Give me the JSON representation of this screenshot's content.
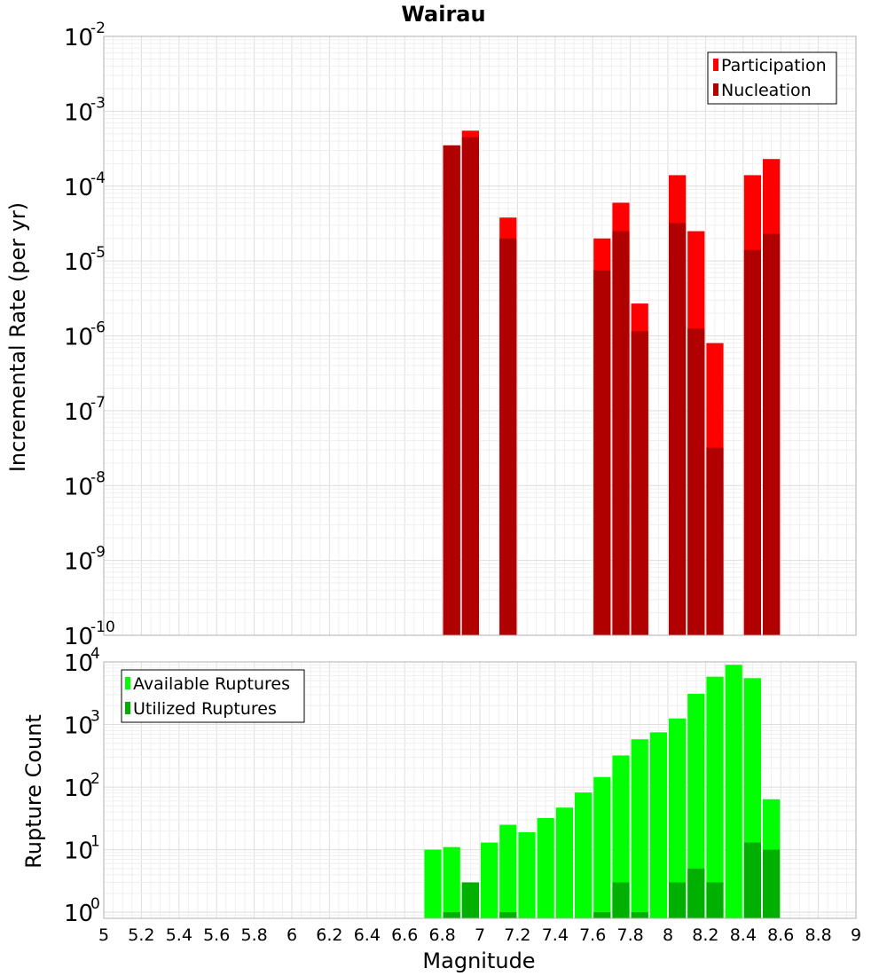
{
  "chart_data": [
    {
      "type": "bar",
      "title": "Wairau",
      "ylabel": "Incremental Rate (per yr)",
      "xlabel": "",
      "yscale": "log",
      "xlim": [
        5,
        9
      ],
      "ylim": [
        1e-10,
        0.01
      ],
      "y_tick_exponents": [
        -10,
        -9,
        -8,
        -7,
        -6,
        -5,
        -4,
        -3,
        -2
      ],
      "y_tick_base": "10",
      "bar_width": 0.1,
      "grid": true,
      "legend_position": "top-right",
      "series": [
        {
          "name": "Participation",
          "color": "#ff0000",
          "x": [
            6.85,
            6.95,
            7.15,
            7.65,
            7.75,
            7.85,
            8.05,
            8.15,
            8.25,
            8.45,
            8.55
          ],
          "values": [
            0.00035,
            0.00055,
            3.8e-05,
            2e-05,
            6e-05,
            2.7e-06,
            0.00014,
            2.5e-05,
            8e-07,
            0.00014,
            0.00023
          ]
        },
        {
          "name": "Nucleation",
          "color": "#b00000",
          "x": [
            6.85,
            6.95,
            7.15,
            7.65,
            7.75,
            7.85,
            8.05,
            8.15,
            8.25,
            8.45,
            8.55
          ],
          "values": [
            0.00035,
            0.00045,
            2e-05,
            7.5e-06,
            2.5e-05,
            1.15e-06,
            3.2e-05,
            1.25e-06,
            3.2e-08,
            1.4e-05,
            2.3e-05
          ]
        }
      ]
    },
    {
      "type": "bar",
      "title": "",
      "ylabel": "Rupture Count",
      "xlabel": "Magnitude",
      "yscale": "log",
      "xlim": [
        5,
        9
      ],
      "ylim": [
        0.8,
        10000
      ],
      "y_tick_exponents": [
        0,
        1,
        2,
        3,
        4
      ],
      "y_tick_base": "10",
      "x_ticks": [
        "5",
        "5.2",
        "5.4",
        "5.6",
        "5.8",
        "6",
        "6.2",
        "6.4",
        "6.6",
        "6.8",
        "7",
        "7.2",
        "7.4",
        "7.6",
        "7.8",
        "8",
        "8.2",
        "8.4",
        "8.6",
        "8.8",
        "9"
      ],
      "bar_width": 0.1,
      "grid": true,
      "legend_position": "top-left",
      "series": [
        {
          "name": "Available Ruptures",
          "color": "#00ff00",
          "x": [
            6.75,
            6.85,
            6.95,
            7.05,
            7.15,
            7.25,
            7.35,
            7.45,
            7.55,
            7.65,
            7.75,
            7.85,
            7.95,
            8.05,
            8.15,
            8.25,
            8.35,
            8.45,
            8.55
          ],
          "values": [
            10,
            11,
            3,
            13,
            25,
            19,
            32,
            47,
            82,
            145,
            320,
            580,
            750,
            1250,
            3100,
            5800,
            9000,
            5500,
            64
          ]
        },
        {
          "name": "Utilized Ruptures",
          "color": "#00b000",
          "x": [
            6.85,
            6.95,
            7.15,
            7.65,
            7.75,
            7.85,
            8.05,
            8.15,
            8.25,
            8.45,
            8.55
          ],
          "values": [
            1,
            3,
            1,
            1,
            3,
            1,
            3,
            5,
            3,
            13,
            10
          ]
        }
      ]
    }
  ]
}
